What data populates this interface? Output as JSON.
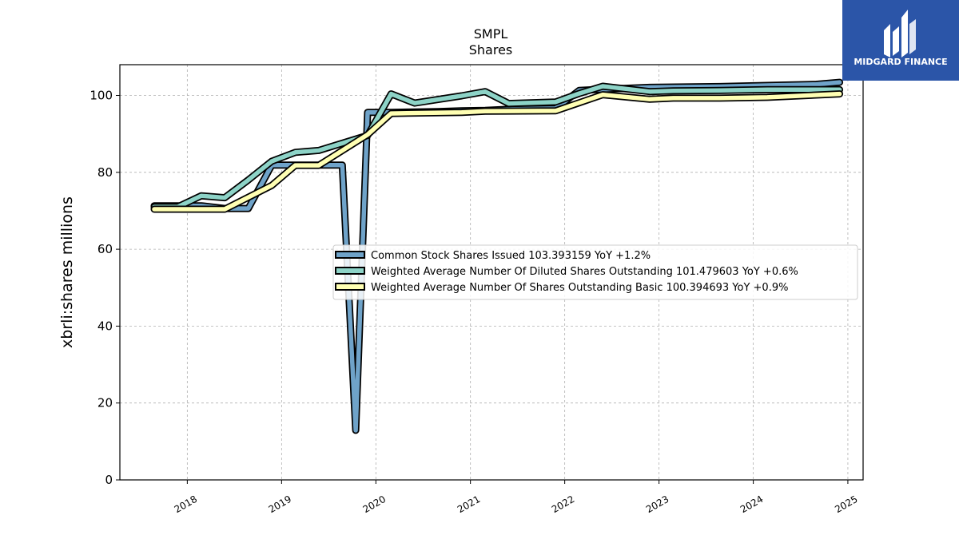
{
  "logo": {
    "text": "MIDGARD FINANCE",
    "color": "#2b55a8"
  },
  "chart_data": {
    "type": "line",
    "title": "SMPL",
    "subtitle": "Shares",
    "xlabel": "",
    "ylabel": "xbrli:shares millions",
    "x_axis_type": "date",
    "xlim": [
      "2017-04-15",
      "2025-03-01"
    ],
    "ylim": [
      0,
      108
    ],
    "x_ticks": [
      "2018",
      "2019",
      "2020",
      "2021",
      "2022",
      "2023",
      "2024",
      "2025"
    ],
    "y_ticks": [
      "0",
      "20",
      "40",
      "60",
      "80",
      "100"
    ],
    "grid": true,
    "legend_position": "center-right",
    "series": [
      {
        "name": "Common Stock Shares Issued  103.393159 YoY +1.2%",
        "color": "#6fa3c9",
        "points": [
          [
            "2017-08-26",
            71.3
          ],
          [
            "2018-02-24",
            71.3
          ],
          [
            "2018-05-26",
            70.6
          ],
          [
            "2018-08-25",
            70.6
          ],
          [
            "2018-11-24",
            81.9
          ],
          [
            "2019-02-23",
            81.9
          ],
          [
            "2019-05-25",
            81.9
          ],
          [
            "2019-08-24",
            81.9
          ],
          [
            "2019-10-15",
            12.9
          ],
          [
            "2019-11-30",
            95.6
          ],
          [
            "2020-02-29",
            95.6
          ],
          [
            "2020-05-30",
            95.7
          ],
          [
            "2020-08-29",
            95.8
          ],
          [
            "2020-11-28",
            96.0
          ],
          [
            "2021-02-27",
            96.1
          ],
          [
            "2021-05-29",
            96.4
          ],
          [
            "2021-08-28",
            96.5
          ],
          [
            "2021-11-27",
            96.6
          ],
          [
            "2022-02-26",
            101.3
          ],
          [
            "2022-05-28",
            101.6
          ],
          [
            "2022-11-26",
            102.1
          ],
          [
            "2023-08-26",
            102.3
          ],
          [
            "2024-02-24",
            102.6
          ],
          [
            "2024-08-31",
            102.9
          ],
          [
            "2024-11-30",
            103.4
          ]
        ]
      },
      {
        "name": "Weighted Average Number Of Diluted Shares Outstanding  101.479603 YoY +0.6%",
        "color": "#8dd3c7",
        "points": [
          [
            "2017-08-26",
            71.0
          ],
          [
            "2017-11-25",
            71.0
          ],
          [
            "2018-02-24",
            73.9
          ],
          [
            "2018-05-26",
            73.4
          ],
          [
            "2018-08-25",
            78.0
          ],
          [
            "2018-11-24",
            82.9
          ],
          [
            "2019-02-23",
            85.2
          ],
          [
            "2019-05-25",
            85.7
          ],
          [
            "2019-11-30",
            89.6
          ],
          [
            "2020-02-29",
            100.4
          ],
          [
            "2020-05-30",
            98.0
          ],
          [
            "2020-11-28",
            99.9
          ],
          [
            "2021-02-27",
            101.0
          ],
          [
            "2021-05-29",
            97.9
          ],
          [
            "2021-11-27",
            98.3
          ],
          [
            "2022-02-26",
            100.5
          ],
          [
            "2022-05-28",
            102.4
          ],
          [
            "2022-11-26",
            101.0
          ],
          [
            "2023-02-25",
            101.2
          ],
          [
            "2023-08-26",
            101.3
          ],
          [
            "2024-02-24",
            101.5
          ],
          [
            "2024-08-31",
            101.5
          ],
          [
            "2024-11-30",
            101.5
          ]
        ]
      },
      {
        "name": "Weighted Average Number Of Shares Outstanding Basic  100.394693 YoY +0.9%",
        "color": "#ffffb3",
        "points": [
          [
            "2017-08-26",
            70.4
          ],
          [
            "2018-05-26",
            70.4
          ],
          [
            "2018-11-24",
            76.6
          ],
          [
            "2019-02-23",
            81.8
          ],
          [
            "2019-05-25",
            81.8
          ],
          [
            "2019-11-30",
            89.8
          ],
          [
            "2020-02-29",
            95.3
          ],
          [
            "2020-11-28",
            95.6
          ],
          [
            "2021-02-27",
            95.9
          ],
          [
            "2021-11-27",
            96.0
          ],
          [
            "2022-02-26",
            98.1
          ],
          [
            "2022-05-28",
            100.2
          ],
          [
            "2022-11-26",
            99.0
          ],
          [
            "2023-02-25",
            99.3
          ],
          [
            "2023-08-26",
            99.3
          ],
          [
            "2024-02-24",
            99.5
          ],
          [
            "2024-11-30",
            100.4
          ]
        ]
      }
    ]
  }
}
